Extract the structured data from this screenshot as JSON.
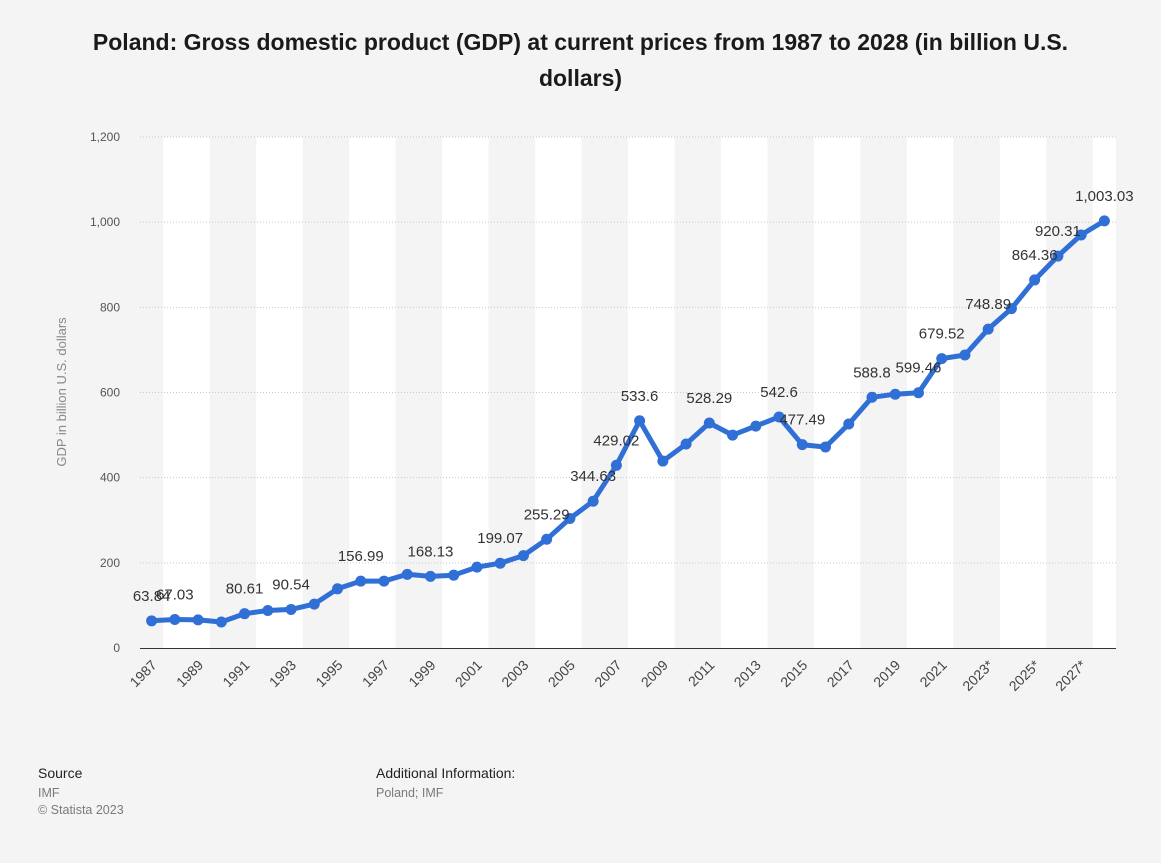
{
  "chart_data": {
    "type": "line",
    "title": "Poland: Gross domestic product (GDP) at current prices from 1987 to 2028 (in billion U.S. dollars)",
    "xlabel": "",
    "ylabel": "GDP in billion U.S. dollars",
    "ylim": [
      0,
      1200
    ],
    "yticks": [
      0,
      200,
      400,
      600,
      800,
      1000,
      1200
    ],
    "ytick_labels": [
      "0",
      "200",
      "400",
      "600",
      "800",
      "1,000",
      "1,200"
    ],
    "grid": true,
    "x": [
      "1987",
      "1988",
      "1989",
      "1990",
      "1991",
      "1992",
      "1993",
      "1994",
      "1995",
      "1996",
      "1997",
      "1998",
      "1999",
      "2000",
      "2001",
      "2002",
      "2003",
      "2004",
      "2005",
      "2006",
      "2007",
      "2008",
      "2009",
      "2010",
      "2011",
      "2012",
      "2013",
      "2014",
      "2015",
      "2016",
      "2017",
      "2018",
      "2019",
      "2020",
      "2021",
      "2022",
      "2023*",
      "2024*",
      "2025*",
      "2026*",
      "2027*",
      "2028*"
    ],
    "xtick_labels": [
      "1987",
      "1989",
      "1991",
      "1993",
      "1995",
      "1997",
      "1999",
      "2001",
      "2003",
      "2005",
      "2007",
      "2009",
      "2011",
      "2013",
      "2015",
      "2017",
      "2019",
      "2021",
      "2023*",
      "2025*",
      "2027*"
    ],
    "series": [
      {
        "values": [
          63.84,
          67.03,
          66,
          61,
          80.61,
          88,
          90.54,
          103,
          139,
          156.99,
          157,
          173,
          168.13,
          171,
          190,
          199.07,
          217,
          255.29,
          304,
          344.63,
          429.02,
          533.6,
          439,
          479,
          528.29,
          500,
          521,
          542.6,
          477.49,
          472,
          526,
          588.8,
          596,
          599.46,
          679.52,
          688,
          748.89,
          797,
          864.36,
          920.31,
          970,
          1003.03
        ]
      }
    ],
    "data_labels": [
      {
        "index": 0,
        "text": "63.84"
      },
      {
        "index": 1,
        "text": "67.03"
      },
      {
        "index": 4,
        "text": "80.61"
      },
      {
        "index": 6,
        "text": "90.54"
      },
      {
        "index": 9,
        "text": "156.99"
      },
      {
        "index": 12,
        "text": "168.13"
      },
      {
        "index": 15,
        "text": "199.07"
      },
      {
        "index": 17,
        "text": "255.29"
      },
      {
        "index": 19,
        "text": "344.63"
      },
      {
        "index": 20,
        "text": "429.02"
      },
      {
        "index": 21,
        "text": "533.6"
      },
      {
        "index": 24,
        "text": "528.29"
      },
      {
        "index": 27,
        "text": "542.6"
      },
      {
        "index": 28,
        "text": "477.49"
      },
      {
        "index": 31,
        "text": "588.8"
      },
      {
        "index": 33,
        "text": "599.46"
      },
      {
        "index": 34,
        "text": "679.52"
      },
      {
        "index": 36,
        "text": "748.89"
      },
      {
        "index": 38,
        "text": "864.36"
      },
      {
        "index": 39,
        "text": "920.31"
      },
      {
        "index": 41,
        "text": "1,003.03"
      }
    ],
    "line_color": "#2f6fd6"
  },
  "footer": {
    "source_heading": "Source",
    "source_value": "IMF",
    "copyright": "© Statista 2023",
    "additional_heading": "Additional Information:",
    "additional_value": "Poland; IMF"
  }
}
